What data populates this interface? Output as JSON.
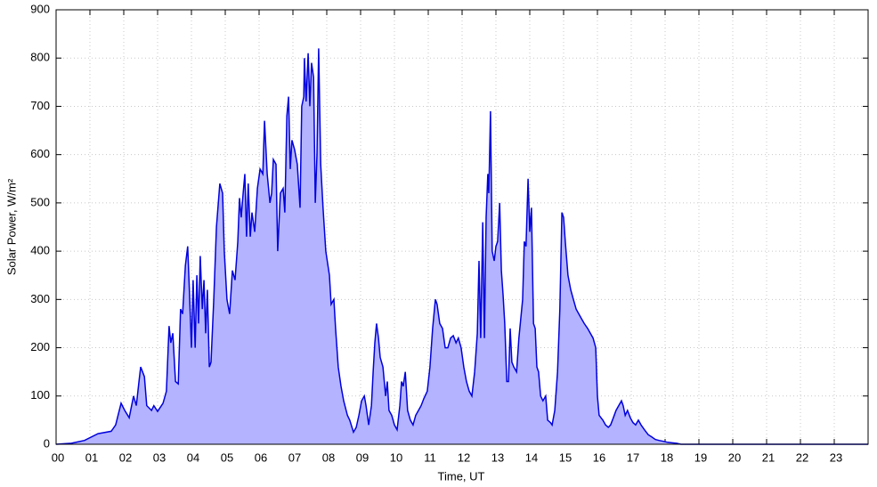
{
  "chart_data": {
    "type": "area",
    "x_label": "Time, UT",
    "y_label": "Solar Power, W/m²",
    "line_color": "#0000dd",
    "fill_color": "#b3b3ff",
    "grid": true,
    "xlim": [
      0,
      24
    ],
    "ylim": [
      0,
      900
    ],
    "xticks": [
      {
        "value": 0,
        "label": "00"
      },
      {
        "value": 1,
        "label": "01"
      },
      {
        "value": 2,
        "label": "02"
      },
      {
        "value": 3,
        "label": "03"
      },
      {
        "value": 4,
        "label": "04"
      },
      {
        "value": 5,
        "label": "05"
      },
      {
        "value": 6,
        "label": "06"
      },
      {
        "value": 7,
        "label": "07"
      },
      {
        "value": 8,
        "label": "08"
      },
      {
        "value": 9,
        "label": "09"
      },
      10,
      11,
      12,
      13,
      14,
      15,
      16,
      17,
      18,
      19,
      20,
      21,
      22,
      23
    ],
    "yticks": [
      0,
      100,
      200,
      300,
      400,
      500,
      600,
      700,
      800,
      900
    ],
    "x": [
      0,
      0.45,
      0.84,
      1.24,
      1.63,
      1.76,
      1.92,
      2.03,
      2.16,
      2.29,
      2.37,
      2.45,
      2.5,
      2.61,
      2.68,
      2.82,
      2.89,
      3.0,
      3.16,
      3.26,
      3.34,
      3.39,
      3.45,
      3.53,
      3.61,
      3.68,
      3.74,
      3.82,
      3.89,
      3.95,
      4.0,
      4.05,
      4.11,
      4.16,
      4.21,
      4.26,
      4.32,
      4.37,
      4.42,
      4.47,
      4.53,
      4.58,
      4.66,
      4.74,
      4.84,
      4.92,
      4.97,
      5.05,
      5.13,
      5.21,
      5.29,
      5.37,
      5.42,
      5.47,
      5.53,
      5.58,
      5.63,
      5.68,
      5.74,
      5.79,
      5.87,
      5.95,
      6.03,
      6.11,
      6.16,
      6.24,
      6.32,
      6.37,
      6.42,
      6.5,
      6.55,
      6.63,
      6.71,
      6.76,
      6.82,
      6.87,
      6.92,
      6.97,
      7.05,
      7.13,
      7.21,
      7.26,
      7.32,
      7.34,
      7.39,
      7.45,
      7.5,
      7.55,
      7.61,
      7.66,
      7.71,
      7.76,
      7.82,
      7.89,
      7.97,
      8.08,
      8.13,
      8.21,
      8.26,
      8.34,
      8.42,
      8.5,
      8.61,
      8.68,
      8.79,
      8.87,
      8.95,
      9.03,
      9.11,
      9.16,
      9.24,
      9.32,
      9.37,
      9.42,
      9.47,
      9.53,
      9.58,
      9.66,
      9.74,
      9.79,
      9.84,
      9.92,
      10.0,
      10.08,
      10.16,
      10.21,
      10.26,
      10.32,
      10.39,
      10.47,
      10.55,
      10.63,
      10.71,
      10.79,
      10.87,
      10.97,
      11.05,
      11.13,
      11.21,
      11.26,
      11.34,
      11.42,
      11.5,
      11.58,
      11.66,
      11.74,
      11.82,
      11.89,
      11.97,
      12.05,
      12.13,
      12.21,
      12.29,
      12.37,
      12.45,
      12.5,
      12.55,
      12.61,
      12.66,
      12.71,
      12.76,
      12.79,
      12.84,
      12.89,
      12.95,
      13.0,
      13.05,
      13.11,
      13.16,
      13.21,
      13.26,
      13.32,
      13.37,
      13.42,
      13.47,
      13.53,
      13.61,
      13.68,
      13.79,
      13.84,
      13.89,
      13.95,
      14.0,
      14.05,
      14.11,
      14.16,
      14.21,
      14.26,
      14.32,
      14.39,
      14.47,
      14.53,
      14.61,
      14.66,
      14.74,
      14.82,
      14.89,
      14.95,
      15.0,
      15.05,
      15.13,
      15.21,
      15.29,
      15.37,
      15.45,
      15.53,
      15.61,
      15.71,
      15.79,
      15.87,
      15.95,
      16.0,
      16.05,
      16.16,
      16.24,
      16.32,
      16.39,
      16.47,
      16.55,
      16.63,
      16.71,
      16.76,
      16.82,
      16.89,
      16.97,
      17.05,
      17.13,
      17.21,
      17.29,
      17.39,
      17.5,
      17.61,
      17.71,
      17.82,
      17.95,
      18.08,
      18.21,
      18.34,
      18.47,
      24
    ],
    "values": [
      0,
      2,
      8,
      22,
      27,
      40,
      85,
      70,
      55,
      100,
      80,
      130,
      160,
      140,
      80,
      70,
      80,
      68,
      85,
      110,
      245,
      210,
      230,
      130,
      125,
      280,
      270,
      370,
      410,
      300,
      200,
      340,
      200,
      350,
      250,
      390,
      280,
      340,
      230,
      320,
      160,
      170,
      300,
      450,
      540,
      520,
      400,
      300,
      270,
      360,
      340,
      420,
      510,
      470,
      520,
      560,
      430,
      540,
      430,
      480,
      440,
      530,
      570,
      560,
      670,
      560,
      500,
      520,
      590,
      580,
      400,
      520,
      530,
      480,
      680,
      720,
      570,
      630,
      610,
      580,
      490,
      700,
      720,
      800,
      710,
      810,
      700,
      790,
      760,
      500,
      600,
      820,
      580,
      490,
      400,
      350,
      290,
      300,
      240,
      160,
      120,
      90,
      60,
      50,
      25,
      35,
      60,
      90,
      100,
      80,
      40,
      80,
      150,
      210,
      250,
      220,
      180,
      160,
      100,
      130,
      70,
      60,
      40,
      30,
      80,
      130,
      120,
      150,
      70,
      50,
      40,
      60,
      70,
      80,
      95,
      110,
      160,
      240,
      300,
      290,
      250,
      240,
      200,
      200,
      220,
      225,
      210,
      220,
      200,
      160,
      130,
      110,
      100,
      150,
      230,
      380,
      220,
      460,
      220,
      470,
      560,
      520,
      690,
      400,
      380,
      410,
      420,
      500,
      360,
      310,
      250,
      130,
      130,
      240,
      170,
      160,
      150,
      220,
      300,
      420,
      410,
      550,
      440,
      490,
      250,
      240,
      160,
      150,
      100,
      90,
      100,
      50,
      45,
      40,
      70,
      150,
      280,
      480,
      470,
      420,
      350,
      320,
      300,
      280,
      270,
      260,
      250,
      240,
      230,
      220,
      200,
      100,
      60,
      50,
      40,
      35,
      40,
      55,
      70,
      80,
      90,
      80,
      60,
      70,
      55,
      45,
      40,
      50,
      40,
      30,
      20,
      15,
      10,
      8,
      6,
      4,
      3,
      2,
      0,
      0
    ]
  }
}
